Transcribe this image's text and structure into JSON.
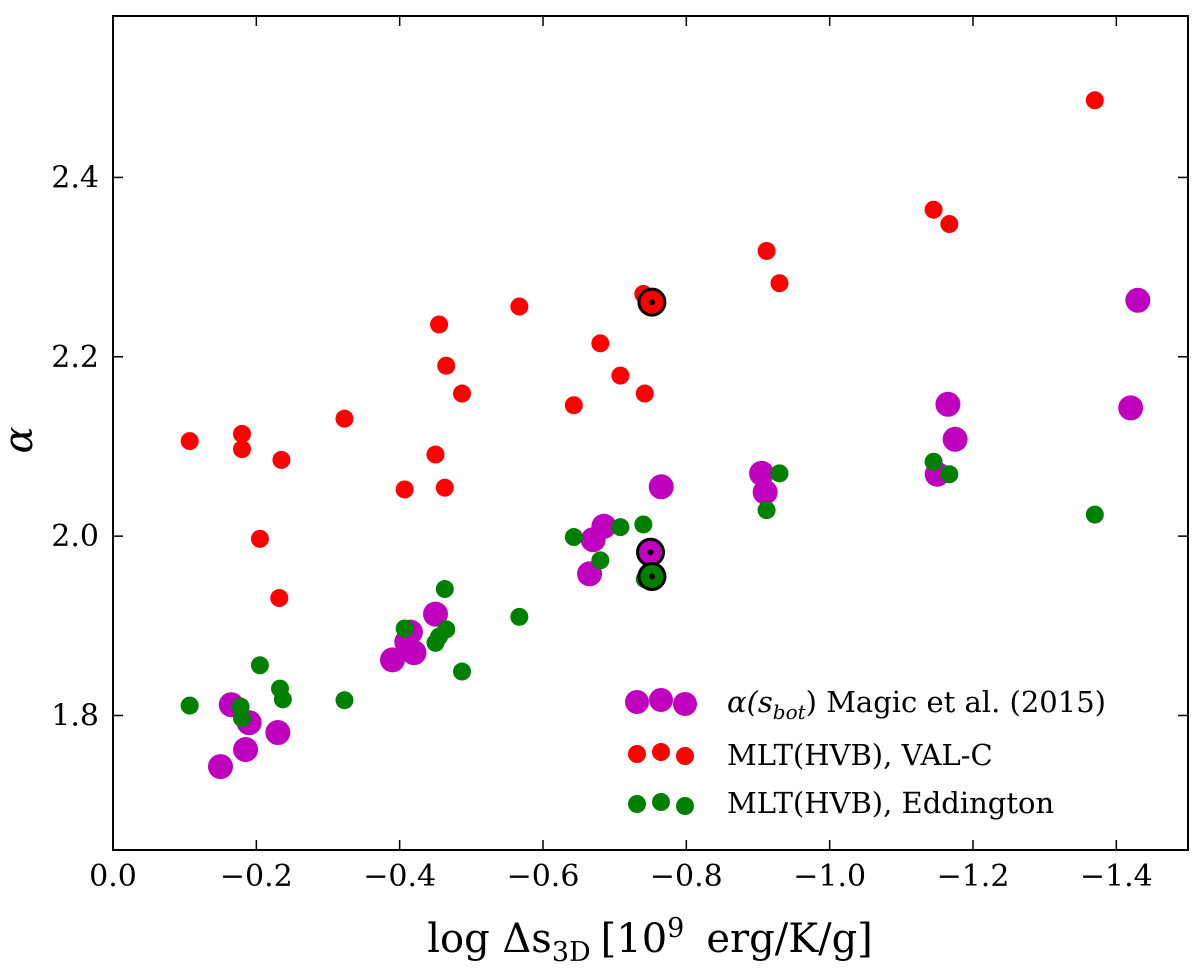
{
  "chart_data": {
    "type": "scatter",
    "title": "",
    "xlabel": "log Δs",
    "xlabel_sub": "3D",
    "xlabel_units": "[10",
    "xlabel_units_sup": "9",
    "xlabel_units_tail": "erg/K/g]",
    "ylabel": "α",
    "xlim": [
      0.0,
      -1.5
    ],
    "ylim": [
      1.65,
      2.58
    ],
    "xticks": [
      0.0,
      -0.2,
      -0.4,
      -0.6,
      -0.8,
      -1.0,
      -1.2,
      -1.4
    ],
    "xtick_labels": [
      "0.0",
      "−0.2",
      "−0.4",
      "−0.6",
      "−0.8",
      "−1.0",
      "−1.2",
      "−1.4"
    ],
    "yticks": [
      1.8,
      2.0,
      2.2,
      2.4
    ],
    "ytick_labels": [
      "1.8",
      "2.0",
      "2.2",
      "2.4"
    ],
    "legend_position": "lower-right",
    "series": [
      {
        "name": "magic",
        "label_prefix": "α(s",
        "label_sub": "bot",
        "label_suffix": ") Magic et al. (2015)",
        "color": "#bf00bf",
        "size": "large",
        "x": [
          -0.15,
          -0.165,
          -0.185,
          -0.19,
          -0.23,
          -0.39,
          -0.41,
          -0.415,
          -0.42,
          -0.45,
          -0.665,
          -0.67,
          -0.685,
          -0.765,
          -0.905,
          -0.91,
          -1.15,
          -1.165,
          -1.175,
          -1.42,
          -1.43
        ],
        "y": [
          1.743,
          1.812,
          1.762,
          1.792,
          1.781,
          1.862,
          1.882,
          1.893,
          1.87,
          1.913,
          1.958,
          1.996,
          2.011,
          2.055,
          2.07,
          2.049,
          2.069,
          2.147,
          2.108,
          2.143,
          2.263
        ]
      },
      {
        "name": "val-c",
        "label": "MLT(HVB), VAL-C",
        "color": "#ff0000",
        "size": "small",
        "x": [
          -0.107,
          -0.18,
          -0.18,
          -0.205,
          -0.232,
          -0.235,
          -0.323,
          -0.407,
          -0.45,
          -0.455,
          -0.463,
          -0.465,
          -0.487,
          -0.567,
          -0.643,
          -0.68,
          -0.708,
          -0.74,
          -0.742,
          -0.912,
          -0.93,
          -1.145,
          -1.167,
          -1.37
        ],
        "y": [
          2.106,
          2.114,
          2.097,
          1.997,
          1.931,
          2.085,
          2.131,
          2.052,
          2.091,
          2.236,
          2.054,
          2.19,
          2.159,
          2.256,
          2.146,
          2.215,
          2.179,
          2.27,
          2.159,
          2.318,
          2.282,
          2.364,
          2.348,
          2.486
        ]
      },
      {
        "name": "eddington",
        "label": "MLT(HVB), Eddington",
        "color": "#008000",
        "size": "small",
        "x": [
          -0.107,
          -0.178,
          -0.18,
          -0.205,
          -0.233,
          -0.237,
          -0.323,
          -0.407,
          -0.45,
          -0.455,
          -0.463,
          -0.465,
          -0.487,
          -0.567,
          -0.643,
          -0.68,
          -0.708,
          -0.74,
          -0.742,
          -0.912,
          -0.93,
          -1.145,
          -1.167,
          -1.37
        ],
        "y": [
          1.811,
          1.81,
          1.797,
          1.856,
          1.83,
          1.818,
          1.817,
          1.897,
          1.881,
          1.888,
          1.941,
          1.896,
          1.849,
          1.91,
          1.999,
          1.973,
          2.01,
          2.013,
          1.952,
          2.029,
          2.07,
          2.083,
          2.069,
          2.024
        ]
      }
    ],
    "highlighted": [
      {
        "series": "val-c",
        "x": -0.752,
        "y": 2.261
      },
      {
        "series": "magic",
        "x": -0.75,
        "y": 1.982
      },
      {
        "series": "eddington",
        "x": -0.752,
        "y": 1.955
      }
    ]
  }
}
